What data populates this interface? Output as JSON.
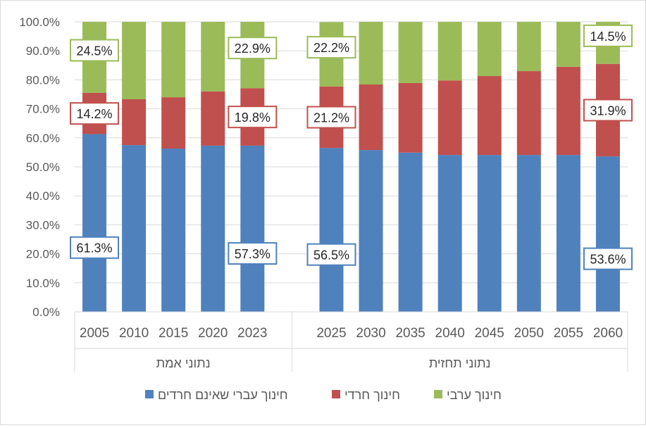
{
  "chart_data": {
    "type": "bar",
    "stacked": true,
    "percent": true,
    "ylim": [
      0,
      100
    ],
    "yticks": [
      "0.0%",
      "10.0%",
      "20.0%",
      "30.0%",
      "40.0%",
      "50.0%",
      "60.0%",
      "70.0%",
      "80.0%",
      "90.0%",
      "100.0%"
    ],
    "grid": true,
    "legend_position": "bottom",
    "groups": [
      {
        "label": "נתוני אמת",
        "categories": [
          "2005",
          "2010",
          "2015",
          "2020",
          "2023"
        ]
      },
      {
        "label": "נתוני תחזית",
        "categories": [
          "2025",
          "2030",
          "2035",
          "2040",
          "2045",
          "2050",
          "2055",
          "2060"
        ]
      }
    ],
    "categories": [
      "2005",
      "2010",
      "2015",
      "2020",
      "2023",
      "2025",
      "2030",
      "2035",
      "2040",
      "2045",
      "2050",
      "2055",
      "2060"
    ],
    "series": [
      {
        "name": "חינוך עברי שאינם חרדים",
        "color": "#4f81bd",
        "values": [
          61.3,
          57.5,
          56.3,
          57.3,
          57.3,
          56.5,
          55.8,
          54.9,
          54.1,
          54.1,
          54.1,
          54.1,
          53.6
        ]
      },
      {
        "name": "חינוך חרדי",
        "color": "#c0504d",
        "values": [
          14.2,
          15.8,
          17.7,
          18.7,
          19.8,
          21.2,
          22.6,
          24.0,
          25.7,
          27.2,
          28.9,
          30.4,
          31.9
        ]
      },
      {
        "name": "חינוך ערבי",
        "color": "#9bbb59",
        "values": [
          24.5,
          26.7,
          26.0,
          24.0,
          22.9,
          22.2,
          21.6,
          21.1,
          20.2,
          18.7,
          17.0,
          15.5,
          14.5
        ]
      }
    ],
    "data_labels": {
      "2005": [
        "61.3%",
        "14.2%",
        "24.5%"
      ],
      "2023": [
        "57.3%",
        "19.8%",
        "22.9%"
      ],
      "2025": [
        "56.5%",
        "21.2%",
        "22.2%"
      ],
      "2060": [
        "53.6%",
        "31.9%",
        "14.5%"
      ]
    }
  }
}
